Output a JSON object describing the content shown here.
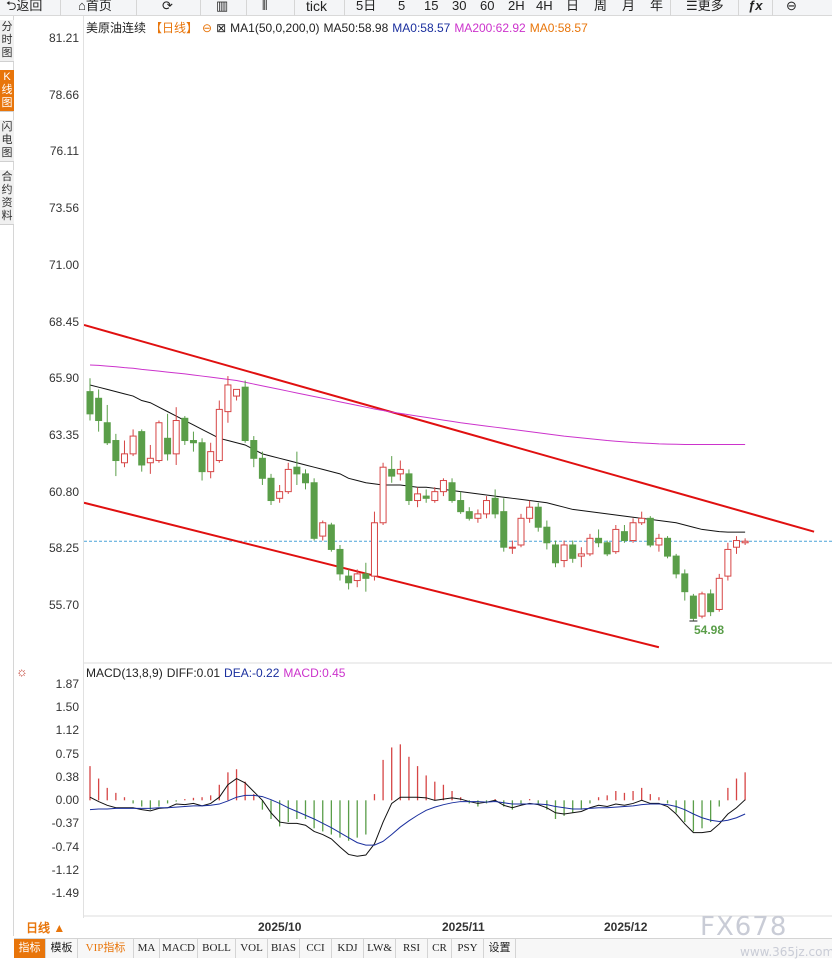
{
  "toolbar": {
    "back": "返回",
    "home": "首页",
    "tick": "tick",
    "periods": [
      "5日",
      "5",
      "15",
      "30",
      "60",
      "2H",
      "4H",
      "日",
      "周",
      "月",
      "年"
    ],
    "more": "更多"
  },
  "sidebar": {
    "tabs": [
      {
        "label": "分时图",
        "active": false
      },
      {
        "label": "K线图",
        "active": true
      },
      {
        "label": "闪电图",
        "active": false
      },
      {
        "label": "合约资料",
        "active": false
      }
    ]
  },
  "main_legend": {
    "name": "美原油连续",
    "period": "【日线】",
    "ma_params": "MA1(50,0,200,0)",
    "ma50": "MA50:58.98",
    "ma0": "MA0:58.57",
    "ma200": "MA200:62.92",
    "ma0b": "MA0:58.57"
  },
  "macd_legend": {
    "params": "MACD(13,8,9)",
    "diff": "DIFF:0.01",
    "dea": "DEA:-0.22",
    "macd": "MACD:0.45"
  },
  "price_axis": [
    "81.21",
    "78.66",
    "76.11",
    "73.56",
    "71.00",
    "68.45",
    "65.90",
    "63.35",
    "60.80",
    "58.25",
    "55.70"
  ],
  "macd_axis": [
    "1.87",
    "1.50",
    "1.12",
    "0.75",
    "0.38",
    "0.00",
    "-0.37",
    "-0.74",
    "-1.12",
    "-1.49"
  ],
  "x_labels": [
    "2025/10",
    "2025/11",
    "2025/12"
  ],
  "low_label": "54.98",
  "day_button": "日线 ▲",
  "indicator_tabs": [
    "指标",
    "模板",
    "VIP指标",
    "MA",
    "MACD",
    "BOLL",
    "VOL",
    "BIAS",
    "CCI",
    "KDJ",
    "LW&",
    "RSI",
    "CR",
    "PSY",
    "设置"
  ],
  "watermark": "FX678",
  "watermark_url": "www.365jz.com",
  "colors": {
    "up": "#d64545",
    "down": "#5a9e49",
    "ma50": "#111111",
    "ma200": "#cc33cc",
    "dea": "#1a2f9e",
    "channel": "#e01010",
    "accent": "#e8750a",
    "current_line": "#4aa3d8"
  },
  "chart_data": {
    "type": "candlestick",
    "instrument": "美原油连续",
    "period": "日线",
    "current_price": 58.57,
    "price_axis_range": [
      54.0,
      82.0
    ],
    "ohlc": [
      [
        65.3,
        65.9,
        64.0,
        64.3
      ],
      [
        65.0,
        65.4,
        63.5,
        64.0
      ],
      [
        63.9,
        64.7,
        62.9,
        63.0
      ],
      [
        63.1,
        63.4,
        61.5,
        62.2
      ],
      [
        62.1,
        63.1,
        61.9,
        62.5
      ],
      [
        62.5,
        63.6,
        62.4,
        63.3
      ],
      [
        63.5,
        63.6,
        61.7,
        62.0
      ],
      [
        62.1,
        62.9,
        61.6,
        62.3
      ],
      [
        62.2,
        64.0,
        62.1,
        63.9
      ],
      [
        63.2,
        64.3,
        62.2,
        62.5
      ],
      [
        62.5,
        64.6,
        62.0,
        64.0
      ],
      [
        64.1,
        64.2,
        62.9,
        63.1
      ],
      [
        63.1,
        63.5,
        62.6,
        63.0
      ],
      [
        63.0,
        63.2,
        61.3,
        61.7
      ],
      [
        61.7,
        63.0,
        61.4,
        62.6
      ],
      [
        62.2,
        64.9,
        62.1,
        64.5
      ],
      [
        64.4,
        66.0,
        63.9,
        65.6
      ],
      [
        65.1,
        65.4,
        64.9,
        65.4
      ],
      [
        65.5,
        65.8,
        63.0,
        63.1
      ],
      [
        63.1,
        63.3,
        61.9,
        62.3
      ],
      [
        62.3,
        62.6,
        61.1,
        61.4
      ],
      [
        61.4,
        61.6,
        60.2,
        60.4
      ],
      [
        60.5,
        61.1,
        60.3,
        60.8
      ],
      [
        60.8,
        62.1,
        60.7,
        61.8
      ],
      [
        61.9,
        62.6,
        61.1,
        61.6
      ],
      [
        61.6,
        61.8,
        60.9,
        61.2
      ],
      [
        61.2,
        61.4,
        58.6,
        58.7
      ],
      [
        58.8,
        59.5,
        58.6,
        59.4
      ],
      [
        59.3,
        59.4,
        58.1,
        58.2
      ],
      [
        58.2,
        58.4,
        56.8,
        57.1
      ],
      [
        57.0,
        57.3,
        56.4,
        56.7
      ],
      [
        56.8,
        57.3,
        56.5,
        57.1
      ],
      [
        57.1,
        57.6,
        56.3,
        56.9
      ],
      [
        57.0,
        59.9,
        56.8,
        59.4
      ],
      [
        59.4,
        62.1,
        59.3,
        61.9
      ],
      [
        61.8,
        62.4,
        61.2,
        61.5
      ],
      [
        61.6,
        62.2,
        61.3,
        61.8
      ],
      [
        61.6,
        61.8,
        60.2,
        60.4
      ],
      [
        60.4,
        61.0,
        60.1,
        60.7
      ],
      [
        60.6,
        60.9,
        60.3,
        60.5
      ],
      [
        60.4,
        61.0,
        60.3,
        60.8
      ],
      [
        60.8,
        61.4,
        60.6,
        61.3
      ],
      [
        61.2,
        61.4,
        60.3,
        60.4
      ],
      [
        60.4,
        60.8,
        59.8,
        59.9
      ],
      [
        59.9,
        60.1,
        59.5,
        59.6
      ],
      [
        59.6,
        60.0,
        59.4,
        59.8
      ],
      [
        59.8,
        60.6,
        59.6,
        60.4
      ],
      [
        60.5,
        60.9,
        59.6,
        59.8
      ],
      [
        59.9,
        60.5,
        58.1,
        58.3
      ],
      [
        58.3,
        58.6,
        58.0,
        58.3
      ],
      [
        58.4,
        59.8,
        58.3,
        59.6
      ],
      [
        59.6,
        60.4,
        59.4,
        60.1
      ],
      [
        60.1,
        60.3,
        59.0,
        59.2
      ],
      [
        59.2,
        59.5,
        58.2,
        58.5
      ],
      [
        58.4,
        58.6,
        57.4,
        57.6
      ],
      [
        57.7,
        58.6,
        57.4,
        58.4
      ],
      [
        58.4,
        58.6,
        57.6,
        57.8
      ],
      [
        57.9,
        58.3,
        57.4,
        58.0
      ],
      [
        58.0,
        58.9,
        57.9,
        58.7
      ],
      [
        58.7,
        59.1,
        58.3,
        58.5
      ],
      [
        58.5,
        58.6,
        57.9,
        58.0
      ],
      [
        58.1,
        59.3,
        58.0,
        59.1
      ],
      [
        59.0,
        59.3,
        58.5,
        58.6
      ],
      [
        58.6,
        59.6,
        58.5,
        59.4
      ],
      [
        59.4,
        59.9,
        59.3,
        59.6
      ],
      [
        59.6,
        59.7,
        58.3,
        58.4
      ],
      [
        58.4,
        58.9,
        58.1,
        58.7
      ],
      [
        58.7,
        58.8,
        57.8,
        57.9
      ],
      [
        57.9,
        58.0,
        56.9,
        57.1
      ],
      [
        57.1,
        57.3,
        55.9,
        56.3
      ],
      [
        56.1,
        56.2,
        54.98,
        55.1
      ],
      [
        55.2,
        56.3,
        55.1,
        56.2
      ],
      [
        56.2,
        56.4,
        55.2,
        55.4
      ],
      [
        55.5,
        57.1,
        55.4,
        56.9
      ],
      [
        57.0,
        58.5,
        56.8,
        58.2
      ],
      [
        58.3,
        58.8,
        58.0,
        58.6
      ],
      [
        58.5,
        58.7,
        58.4,
        58.57
      ]
    ],
    "ma50": [
      65.6,
      65.5,
      65.4,
      65.3,
      65.2,
      65.1,
      64.9,
      64.8,
      64.6,
      64.4,
      64.2,
      64.0,
      63.8,
      63.6,
      63.4,
      63.2,
      63.1,
      63.0,
      62.9,
      62.7,
      62.5,
      62.4,
      62.3,
      62.2,
      62.1,
      62.0,
      61.9,
      61.8,
      61.7,
      61.6,
      61.4,
      61.3,
      61.2,
      61.15,
      61.1,
      61.1,
      61.1,
      61.05,
      61.0,
      61.0,
      60.95,
      60.9,
      60.85,
      60.8,
      60.75,
      60.7,
      60.65,
      60.6,
      60.55,
      60.5,
      60.45,
      60.4,
      60.35,
      60.3,
      60.2,
      60.1,
      60.0,
      59.95,
      59.9,
      59.85,
      59.8,
      59.75,
      59.7,
      59.65,
      59.6,
      59.55,
      59.5,
      59.45,
      59.4,
      59.3,
      59.2,
      59.1,
      59.05,
      59.0,
      58.98,
      58.98,
      58.98
    ],
    "ma200": [
      66.5,
      66.48,
      66.45,
      66.42,
      66.38,
      66.35,
      66.3,
      66.26,
      66.22,
      66.18,
      66.14,
      66.1,
      66.05,
      66.0,
      65.95,
      65.9,
      65.85,
      65.8,
      65.72,
      65.64,
      65.56,
      65.48,
      65.4,
      65.32,
      65.24,
      65.16,
      65.08,
      65.0,
      64.92,
      64.84,
      64.76,
      64.68,
      64.6,
      64.52,
      64.45,
      64.38,
      64.32,
      64.26,
      64.2,
      64.14,
      64.08,
      64.02,
      63.96,
      63.9,
      63.85,
      63.8,
      63.75,
      63.7,
      63.65,
      63.6,
      63.55,
      63.5,
      63.45,
      63.4,
      63.35,
      63.3,
      63.26,
      63.22,
      63.18,
      63.14,
      63.1,
      63.07,
      63.04,
      63.01,
      62.99,
      62.97,
      62.95,
      62.94,
      62.93,
      62.92,
      62.92,
      62.92,
      62.92,
      62.92,
      62.92,
      62.92,
      62.92
    ],
    "channel_upper": {
      "from": [
        0,
        68.3
      ],
      "to": [
        84,
        59.0
      ]
    },
    "channel_lower": {
      "from": [
        0,
        60.3
      ],
      "to": [
        66,
        53.8
      ]
    },
    "low": {
      "value": 54.98,
      "index": 70
    },
    "macd_axis_range": [
      -1.65,
      2.0
    ],
    "macd_hist": [
      0.55,
      0.35,
      0.2,
      0.12,
      0.05,
      -0.05,
      -0.1,
      -0.15,
      -0.1,
      -0.05,
      -0.02,
      0.02,
      0.04,
      0.05,
      0.08,
      0.25,
      0.45,
      0.5,
      0.3,
      0.1,
      -0.15,
      -0.3,
      -0.42,
      -0.35,
      -0.3,
      -0.3,
      -0.45,
      -0.5,
      -0.55,
      -0.6,
      -0.65,
      -0.6,
      -0.55,
      0.1,
      0.65,
      0.85,
      0.9,
      0.7,
      0.55,
      0.4,
      0.3,
      0.25,
      0.15,
      0.05,
      -0.05,
      -0.1,
      -0.05,
      0.02,
      -0.1,
      -0.15,
      -0.05,
      0.02,
      -0.05,
      -0.15,
      -0.3,
      -0.25,
      -0.2,
      -0.15,
      -0.05,
      0.05,
      0.08,
      0.15,
      0.12,
      0.15,
      0.2,
      0.1,
      0.05,
      -0.05,
      -0.2,
      -0.35,
      -0.5,
      -0.45,
      -0.35,
      -0.1,
      0.2,
      0.35,
      0.45
    ],
    "diff": [
      0.05,
      -0.02,
      -0.08,
      -0.12,
      -0.12,
      -0.12,
      -0.15,
      -0.17,
      -0.13,
      -0.12,
      -0.06,
      -0.07,
      -0.05,
      -0.09,
      -0.05,
      0.05,
      0.25,
      0.35,
      0.28,
      0.14,
      0.0,
      -0.2,
      -0.35,
      -0.37,
      -0.37,
      -0.4,
      -0.5,
      -0.55,
      -0.62,
      -0.75,
      -0.87,
      -0.9,
      -0.88,
      -0.7,
      -0.35,
      -0.05,
      0.05,
      0.05,
      0.05,
      0.04,
      0.0,
      0.02,
      0.04,
      0.02,
      -0.02,
      -0.05,
      -0.03,
      0.0,
      -0.08,
      -0.12,
      -0.08,
      -0.05,
      -0.07,
      -0.12,
      -0.2,
      -0.22,
      -0.2,
      -0.18,
      -0.12,
      -0.08,
      -0.1,
      -0.06,
      -0.08,
      -0.05,
      0.0,
      -0.05,
      -0.05,
      -0.1,
      -0.22,
      -0.38,
      -0.52,
      -0.52,
      -0.5,
      -0.38,
      -0.22,
      -0.12,
      0.01
    ],
    "dea": [
      -0.15,
      -0.14,
      -0.14,
      -0.13,
      -0.13,
      -0.13,
      -0.13,
      -0.13,
      -0.12,
      -0.12,
      -0.11,
      -0.1,
      -0.09,
      -0.09,
      -0.08,
      -0.06,
      -0.01,
      0.05,
      0.08,
      0.08,
      0.06,
      0.01,
      -0.05,
      -0.12,
      -0.18,
      -0.24,
      -0.3,
      -0.37,
      -0.44,
      -0.52,
      -0.6,
      -0.68,
      -0.72,
      -0.72,
      -0.66,
      -0.55,
      -0.43,
      -0.33,
      -0.24,
      -0.16,
      -0.11,
      -0.07,
      -0.04,
      -0.02,
      -0.02,
      -0.02,
      -0.03,
      -0.02,
      -0.04,
      -0.06,
      -0.06,
      -0.06,
      -0.06,
      -0.07,
      -0.1,
      -0.12,
      -0.14,
      -0.14,
      -0.13,
      -0.12,
      -0.12,
      -0.11,
      -0.1,
      -0.09,
      -0.07,
      -0.06,
      -0.06,
      -0.07,
      -0.1,
      -0.15,
      -0.22,
      -0.28,
      -0.32,
      -0.34,
      -0.32,
      -0.28,
      -0.22
    ]
  }
}
